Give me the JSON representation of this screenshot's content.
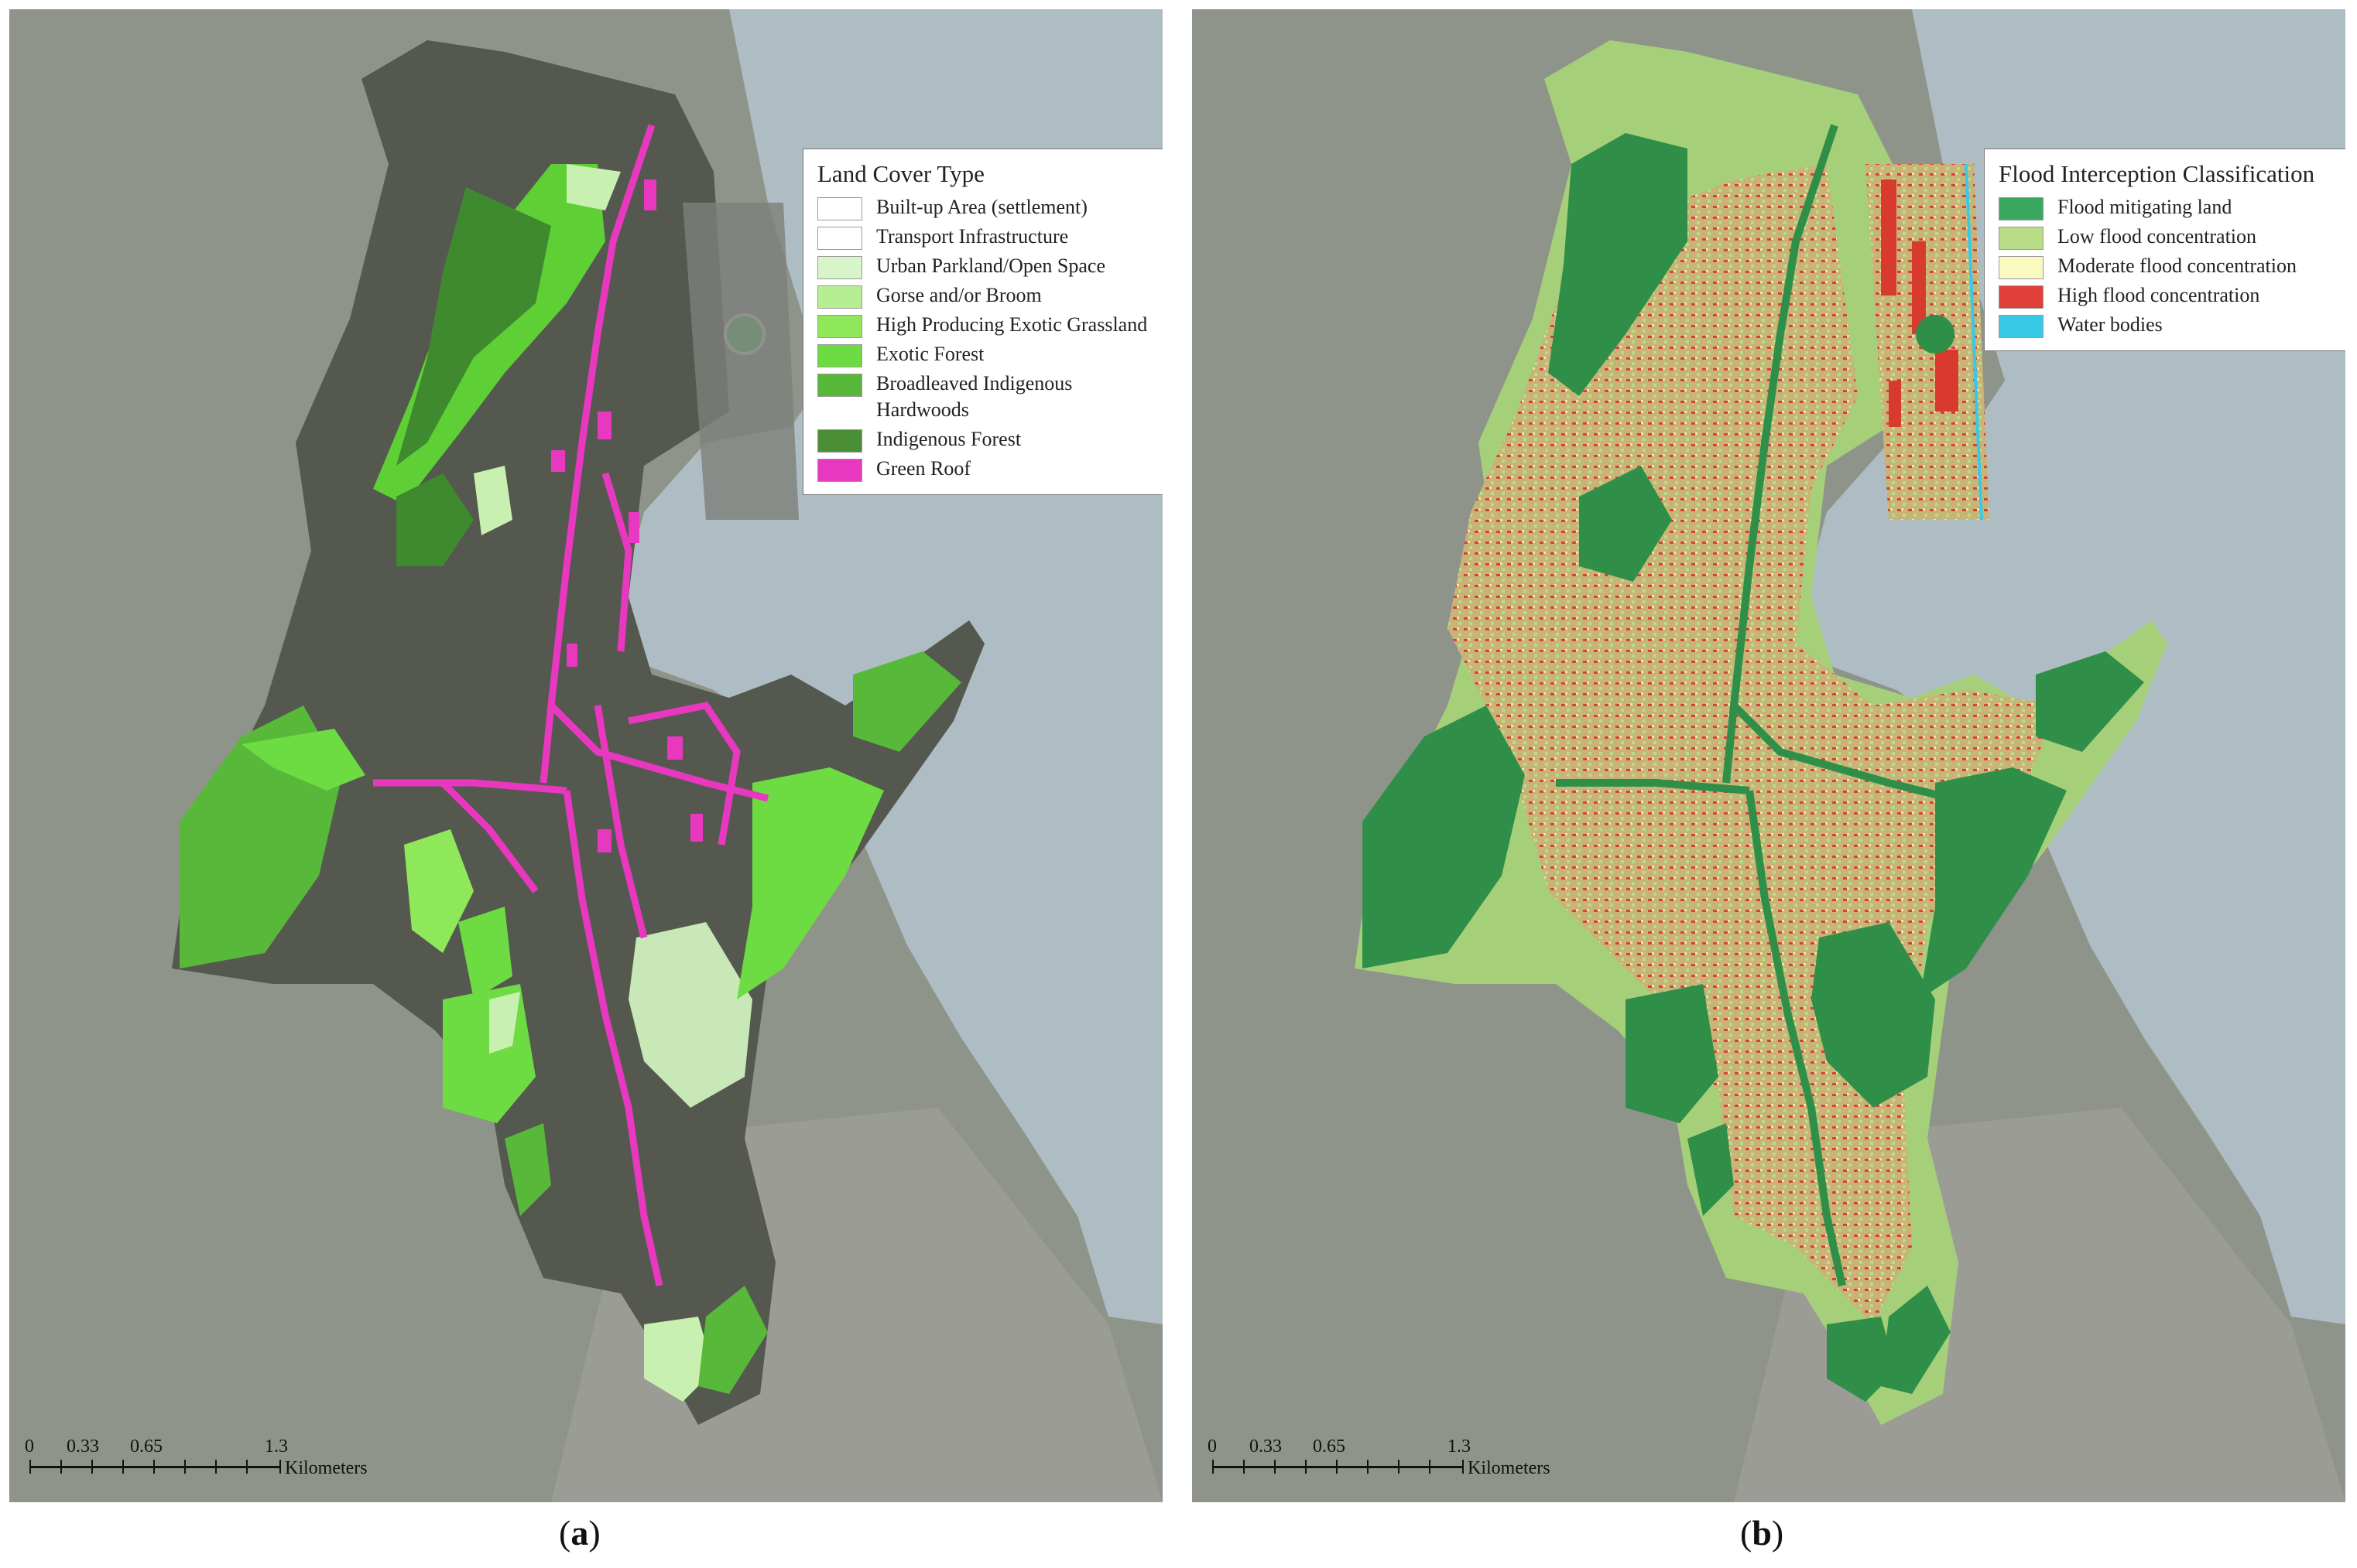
{
  "panel_a": {
    "caption_open": "(",
    "caption_letter": "a",
    "caption_close": ")",
    "legend": {
      "title": "Land Cover Type",
      "items": [
        {
          "label": "Built-up Area (settlement)",
          "color": "#ffffff"
        },
        {
          "label": "Transport Infrastructure",
          "color": "#ffffff"
        },
        {
          "label": "Urban Parkland/Open Space",
          "color": "#d8f5c8"
        },
        {
          "label": "Gorse and/or Broom",
          "color": "#b6ee94"
        },
        {
          "label": "High Producing Exotic Grassland",
          "color": "#8ee85a"
        },
        {
          "label": "Exotic Forest",
          "color": "#6cdc42"
        },
        {
          "label": "Broadleaved Indigenous Hardwoods",
          "color": "#58b83a"
        },
        {
          "label": "Indigenous Forest",
          "color": "#4a8f35"
        },
        {
          "label": "Green Roof",
          "color": "#e838c0"
        }
      ]
    },
    "scale": {
      "ticks": [
        "0",
        "0.33",
        "0.65",
        "1.3"
      ],
      "unit": "Kilometers"
    }
  },
  "panel_b": {
    "caption_open": "(",
    "caption_letter": "b",
    "caption_close": ")",
    "legend": {
      "title": "Flood Interception Classification",
      "items": [
        {
          "label": "Flood mitigating land",
          "color": "#3aa75e"
        },
        {
          "label": "Low flood concentration",
          "color": "#b9dc86"
        },
        {
          "label": "Moderate flood concentration",
          "color": "#fafac0"
        },
        {
          "label": "High flood concentration",
          "color": "#e0403a"
        },
        {
          "label": "Water bodies",
          "color": "#38c8e8"
        }
      ]
    },
    "scale": {
      "ticks": [
        "0",
        "0.33",
        "0.65",
        "1.3"
      ],
      "unit": "Kilometers"
    }
  },
  "colors": {
    "imagery_land": "#8e938a",
    "water": "#aebcc3",
    "urban_dark": "#55584f",
    "forest_dark_a": "#3f8a2e",
    "forest_light_a": "#5fcf36",
    "flood_dark": "#2f8f48",
    "flood_light": "#a6cf7a",
    "flood_mixed": "#c8b47a",
    "flood_high": "#d83a30"
  },
  "icons": [
    "scale-bar-icon"
  ]
}
